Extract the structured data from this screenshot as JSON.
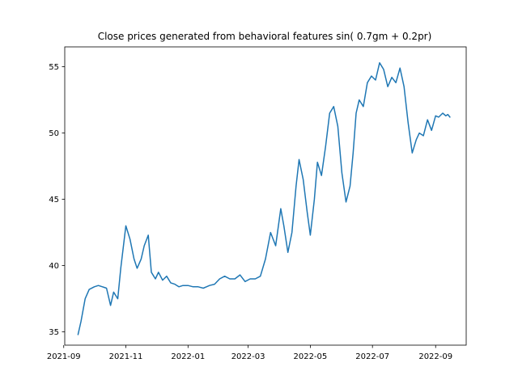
{
  "chart_data": {
    "type": "line",
    "title": "Close prices generated from behavioral features sin( 0.7gm + 0.2pr)",
    "xlabel": "",
    "ylabel": "",
    "xlim": [
      "2021-09-02",
      "2022-10-01"
    ],
    "ylim": [
      34,
      56.5
    ],
    "x_ticks": [
      "2021-09",
      "2021-11",
      "2022-01",
      "2022-03",
      "2022-05",
      "2022-07",
      "2022-09"
    ],
    "y_ticks": [
      35,
      40,
      45,
      50,
      55
    ],
    "grid": false,
    "legend": "none",
    "color": "#1f77b4",
    "series": [
      {
        "name": "",
        "x": [
          "2021-09-15",
          "2021-09-18",
          "2021-09-22",
          "2021-09-26",
          "2021-10-01",
          "2021-10-05",
          "2021-10-09",
          "2021-10-13",
          "2021-10-17",
          "2021-10-20",
          "2021-10-24",
          "2021-10-27",
          "2021-11-01",
          "2021-11-05",
          "2021-11-09",
          "2021-11-12",
          "2021-11-16",
          "2021-11-19",
          "2021-11-23",
          "2021-11-26",
          "2021-11-30",
          "2021-12-03",
          "2021-12-07",
          "2021-12-11",
          "2021-12-15",
          "2021-12-19",
          "2021-12-23",
          "2021-12-27",
          "2022-01-01",
          "2022-01-06",
          "2022-01-11",
          "2022-01-16",
          "2022-01-22",
          "2022-01-27",
          "2022-02-01",
          "2022-02-06",
          "2022-02-11",
          "2022-02-16",
          "2022-02-21",
          "2022-02-26",
          "2022-03-03",
          "2022-03-08",
          "2022-03-13",
          "2022-03-18",
          "2022-03-23",
          "2022-03-28",
          "2022-04-02",
          "2022-04-05",
          "2022-04-09",
          "2022-04-13",
          "2022-04-17",
          "2022-04-20",
          "2022-04-24",
          "2022-04-28",
          "2022-05-01",
          "2022-05-05",
          "2022-05-08",
          "2022-05-12",
          "2022-05-16",
          "2022-05-20",
          "2022-05-24",
          "2022-05-28",
          "2022-06-01",
          "2022-06-05",
          "2022-06-09",
          "2022-06-12",
          "2022-06-15",
          "2022-06-18",
          "2022-06-22",
          "2022-06-26",
          "2022-06-30",
          "2022-07-04",
          "2022-07-08",
          "2022-07-12",
          "2022-07-16",
          "2022-07-20",
          "2022-07-24",
          "2022-07-28",
          "2022-08-01",
          "2022-08-05",
          "2022-08-09",
          "2022-08-13",
          "2022-08-16",
          "2022-08-20",
          "2022-08-24",
          "2022-08-28",
          "2022-09-01",
          "2022-09-04",
          "2022-09-08",
          "2022-09-11",
          "2022-09-13",
          "2022-09-15"
        ],
        "values": [
          34.8,
          35.8,
          37.5,
          38.2,
          38.4,
          38.5,
          38.4,
          38.3,
          37.0,
          38.0,
          37.5,
          39.8,
          43.0,
          42.0,
          40.5,
          39.8,
          40.5,
          41.5,
          42.3,
          39.5,
          39.0,
          39.5,
          38.9,
          39.2,
          38.7,
          38.6,
          38.4,
          38.5,
          38.5,
          38.4,
          38.4,
          38.3,
          38.5,
          38.6,
          39.0,
          39.2,
          39.0,
          39.0,
          39.3,
          38.8,
          39.0,
          39.0,
          39.2,
          40.5,
          42.5,
          41.5,
          44.3,
          43.0,
          41.0,
          42.5,
          46.0,
          48.0,
          46.5,
          44.0,
          42.3,
          45.0,
          47.8,
          46.8,
          49.0,
          51.5,
          52.0,
          50.5,
          47.0,
          44.8,
          46.0,
          48.5,
          51.5,
          52.5,
          52.0,
          53.8,
          54.3,
          54.0,
          55.3,
          54.8,
          53.5,
          54.2,
          53.8,
          54.9,
          53.5,
          50.8,
          48.5,
          49.5,
          50.0,
          49.8,
          51.0,
          50.2,
          51.3,
          51.2,
          51.5,
          51.3,
          51.4,
          51.2
        ]
      }
    ]
  }
}
